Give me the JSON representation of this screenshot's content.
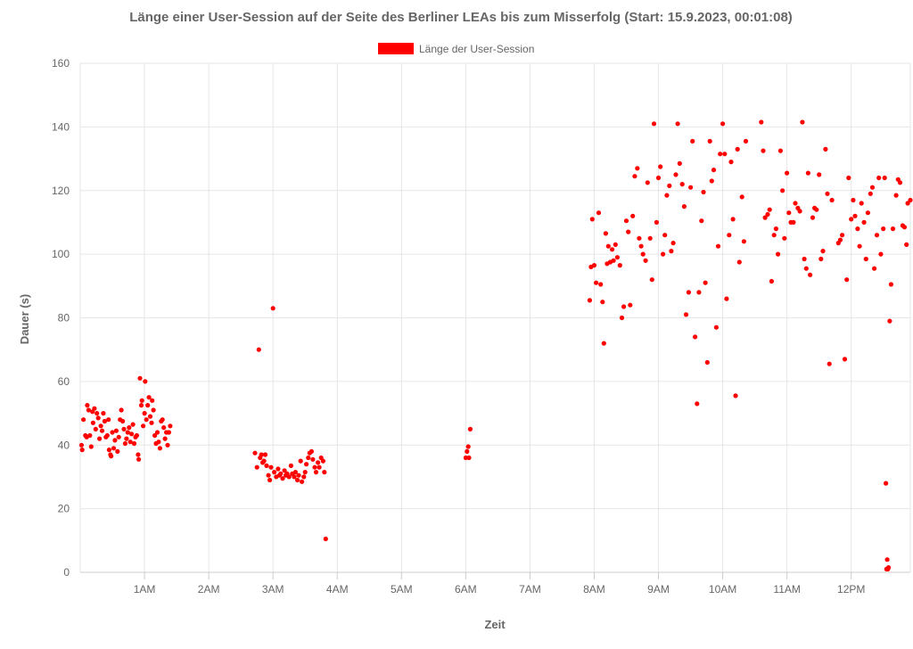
{
  "chart_data": {
    "type": "scatter",
    "title": "Länge einer User-Session auf der Seite des Berliner LEAs bis zum Misserfolg (Start: 15.9.2023, 00:01:08)",
    "xlabel": "Zeit",
    "ylabel": "Dauer (s)",
    "xlim": [
      0,
      12.92
    ],
    "ylim": [
      0,
      160
    ],
    "x_unit": "hours after midnight (15.9.2023)",
    "yticks": [
      0,
      20,
      40,
      60,
      80,
      100,
      120,
      140,
      160
    ],
    "xticks": [
      {
        "value": 1,
        "label": "1AM"
      },
      {
        "value": 2,
        "label": "2AM"
      },
      {
        "value": 3,
        "label": "3AM"
      },
      {
        "value": 4,
        "label": "4AM"
      },
      {
        "value": 5,
        "label": "5AM"
      },
      {
        "value": 6,
        "label": "6AM"
      },
      {
        "value": 7,
        "label": "7AM"
      },
      {
        "value": 8,
        "label": "8AM"
      },
      {
        "value": 9,
        "label": "9AM"
      },
      {
        "value": 10,
        "label": "10AM"
      },
      {
        "value": 11,
        "label": "11AM"
      },
      {
        "value": 12,
        "label": "12PM"
      }
    ],
    "grid": true,
    "legend_position": "top",
    "series": [
      {
        "name": "Länge der User-Session",
        "color": "#ff0000",
        "points": [
          [
            0.02,
            40
          ],
          [
            0.03,
            38.5
          ],
          [
            0.05,
            48
          ],
          [
            0.08,
            43
          ],
          [
            0.1,
            42.5
          ],
          [
            0.11,
            52.5
          ],
          [
            0.13,
            51
          ],
          [
            0.15,
            43
          ],
          [
            0.17,
            39.5
          ],
          [
            0.19,
            50.5
          ],
          [
            0.2,
            47
          ],
          [
            0.22,
            51.5
          ],
          [
            0.24,
            45
          ],
          [
            0.26,
            50
          ],
          [
            0.28,
            48.5
          ],
          [
            0.3,
            42
          ],
          [
            0.32,
            46
          ],
          [
            0.34,
            44.5
          ],
          [
            0.36,
            50
          ],
          [
            0.38,
            47.5
          ],
          [
            0.4,
            42.5
          ],
          [
            0.42,
            43
          ],
          [
            0.44,
            48
          ],
          [
            0.45,
            38.5
          ],
          [
            0.47,
            37
          ],
          [
            0.48,
            36.5
          ],
          [
            0.5,
            44
          ],
          [
            0.52,
            39
          ],
          [
            0.54,
            41.5
          ],
          [
            0.56,
            44.5
          ],
          [
            0.58,
            38
          ],
          [
            0.6,
            42.5
          ],
          [
            0.62,
            48
          ],
          [
            0.64,
            51
          ],
          [
            0.66,
            47.5
          ],
          [
            0.68,
            45
          ],
          [
            0.7,
            40.5
          ],
          [
            0.72,
            42
          ],
          [
            0.74,
            44
          ],
          [
            0.76,
            45.5
          ],
          [
            0.78,
            41
          ],
          [
            0.8,
            43.5
          ],
          [
            0.82,
            46.5
          ],
          [
            0.84,
            40.5
          ],
          [
            0.86,
            42.5
          ],
          [
            0.88,
            43
          ],
          [
            0.9,
            37
          ],
          [
            0.91,
            35.5
          ],
          [
            0.93,
            61
          ],
          [
            0.95,
            52.5
          ],
          [
            0.96,
            54
          ],
          [
            0.98,
            46
          ],
          [
            1.0,
            50
          ],
          [
            1.01,
            60
          ],
          [
            1.03,
            48
          ],
          [
            1.05,
            52.5
          ],
          [
            1.07,
            55
          ],
          [
            1.09,
            49
          ],
          [
            1.11,
            47
          ],
          [
            1.12,
            54
          ],
          [
            1.14,
            51
          ],
          [
            1.16,
            43
          ],
          [
            1.18,
            40.5
          ],
          [
            1.2,
            44
          ],
          [
            1.22,
            41
          ],
          [
            1.24,
            39
          ],
          [
            1.26,
            47.5
          ],
          [
            1.28,
            48
          ],
          [
            1.3,
            45.5
          ],
          [
            1.32,
            42
          ],
          [
            1.34,
            44
          ],
          [
            1.36,
            40
          ],
          [
            1.38,
            44
          ],
          [
            1.4,
            46
          ],
          [
            2.72,
            37.5
          ],
          [
            2.75,
            33
          ],
          [
            2.78,
            70
          ],
          [
            2.8,
            36
          ],
          [
            2.82,
            37
          ],
          [
            2.84,
            34.5
          ],
          [
            2.86,
            35
          ],
          [
            2.88,
            37
          ],
          [
            2.9,
            33.5
          ],
          [
            2.93,
            30.5
          ],
          [
            2.95,
            29
          ],
          [
            2.97,
            33
          ],
          [
            3.0,
            83
          ],
          [
            3.02,
            31.5
          ],
          [
            3.05,
            30
          ],
          [
            3.08,
            32.5
          ],
          [
            3.1,
            30.5
          ],
          [
            3.12,
            31
          ],
          [
            3.15,
            29.5
          ],
          [
            3.18,
            32
          ],
          [
            3.2,
            30.5
          ],
          [
            3.22,
            31
          ],
          [
            3.25,
            30
          ],
          [
            3.28,
            33.5
          ],
          [
            3.3,
            31
          ],
          [
            3.33,
            30
          ],
          [
            3.35,
            31.5
          ],
          [
            3.38,
            29
          ],
          [
            3.4,
            30.5
          ],
          [
            3.43,
            35
          ],
          [
            3.45,
            28.5
          ],
          [
            3.48,
            30
          ],
          [
            3.5,
            31.5
          ],
          [
            3.52,
            34
          ],
          [
            3.55,
            36
          ],
          [
            3.57,
            37.5
          ],
          [
            3.6,
            38
          ],
          [
            3.62,
            35.5
          ],
          [
            3.65,
            33
          ],
          [
            3.67,
            31.5
          ],
          [
            3.7,
            34.5
          ],
          [
            3.72,
            33
          ],
          [
            3.75,
            36
          ],
          [
            3.78,
            35
          ],
          [
            3.8,
            31.5
          ],
          [
            3.82,
            10.5
          ],
          [
            6.0,
            36
          ],
          [
            6.02,
            38
          ],
          [
            6.04,
            39.5
          ],
          [
            6.05,
            36
          ],
          [
            6.07,
            45
          ],
          [
            7.93,
            85.5
          ],
          [
            7.95,
            96
          ],
          [
            7.97,
            111
          ],
          [
            8.0,
            96.5
          ],
          [
            8.03,
            91
          ],
          [
            8.07,
            113
          ],
          [
            8.1,
            90.5
          ],
          [
            8.13,
            85
          ],
          [
            8.15,
            72
          ],
          [
            8.18,
            106.5
          ],
          [
            8.2,
            97
          ],
          [
            8.22,
            102.5
          ],
          [
            8.25,
            97.5
          ],
          [
            8.28,
            101.5
          ],
          [
            8.3,
            98
          ],
          [
            8.33,
            103
          ],
          [
            8.36,
            99
          ],
          [
            8.4,
            96.5
          ],
          [
            8.43,
            80
          ],
          [
            8.46,
            83.5
          ],
          [
            8.5,
            110.5
          ],
          [
            8.53,
            107
          ],
          [
            8.56,
            84
          ],
          [
            8.6,
            112
          ],
          [
            8.63,
            124.5
          ],
          [
            8.67,
            127
          ],
          [
            8.7,
            105
          ],
          [
            8.73,
            102.5
          ],
          [
            8.76,
            100
          ],
          [
            8.8,
            98
          ],
          [
            8.83,
            122.5
          ],
          [
            8.87,
            105
          ],
          [
            8.9,
            92
          ],
          [
            8.93,
            141
          ],
          [
            8.97,
            110
          ],
          [
            9.0,
            124
          ],
          [
            9.03,
            127.5
          ],
          [
            9.07,
            100
          ],
          [
            9.1,
            106
          ],
          [
            9.13,
            118.5
          ],
          [
            9.17,
            121.5
          ],
          [
            9.2,
            101
          ],
          [
            9.23,
            103.5
          ],
          [
            9.27,
            125
          ],
          [
            9.3,
            141
          ],
          [
            9.33,
            128.5
          ],
          [
            9.37,
            122
          ],
          [
            9.4,
            115
          ],
          [
            9.43,
            81
          ],
          [
            9.47,
            88
          ],
          [
            9.5,
            121
          ],
          [
            9.53,
            135.5
          ],
          [
            9.57,
            74
          ],
          [
            9.6,
            53
          ],
          [
            9.63,
            88
          ],
          [
            9.67,
            110.5
          ],
          [
            9.7,
            119.5
          ],
          [
            9.73,
            91
          ],
          [
            9.76,
            66
          ],
          [
            9.8,
            135.5
          ],
          [
            9.83,
            123
          ],
          [
            9.86,
            126.5
          ],
          [
            9.9,
            77
          ],
          [
            9.93,
            102.5
          ],
          [
            9.96,
            131.5
          ],
          [
            10.0,
            141
          ],
          [
            10.03,
            131.5
          ],
          [
            10.06,
            86
          ],
          [
            10.1,
            106
          ],
          [
            10.13,
            129
          ],
          [
            10.16,
            111
          ],
          [
            10.2,
            55.5
          ],
          [
            10.23,
            133
          ],
          [
            10.26,
            97.5
          ],
          [
            10.3,
            118
          ],
          [
            10.33,
            104
          ],
          [
            10.36,
            135.5
          ],
          [
            10.6,
            141.5
          ],
          [
            10.63,
            132.5
          ],
          [
            10.66,
            111.5
          ],
          [
            10.7,
            112.5
          ],
          [
            10.73,
            114
          ],
          [
            10.76,
            91.5
          ],
          [
            10.8,
            106
          ],
          [
            10.83,
            108
          ],
          [
            10.86,
            100
          ],
          [
            10.9,
            132.5
          ],
          [
            10.93,
            120
          ],
          [
            10.96,
            105
          ],
          [
            11.0,
            125.5
          ],
          [
            11.03,
            113
          ],
          [
            11.06,
            110
          ],
          [
            11.1,
            110
          ],
          [
            11.13,
            116
          ],
          [
            11.17,
            114.5
          ],
          [
            11.2,
            113.5
          ],
          [
            11.24,
            141.5
          ],
          [
            11.27,
            98.5
          ],
          [
            11.3,
            95.5
          ],
          [
            11.33,
            125.5
          ],
          [
            11.36,
            93.5
          ],
          [
            11.4,
            111.5
          ],
          [
            11.43,
            114.5
          ],
          [
            11.46,
            114
          ],
          [
            11.5,
            125
          ],
          [
            11.53,
            98.5
          ],
          [
            11.56,
            101
          ],
          [
            11.6,
            133
          ],
          [
            11.63,
            119
          ],
          [
            11.66,
            65.5
          ],
          [
            11.7,
            117
          ],
          [
            11.8,
            103.5
          ],
          [
            11.83,
            104.5
          ],
          [
            11.86,
            106
          ],
          [
            11.9,
            67
          ],
          [
            11.93,
            92
          ],
          [
            11.96,
            124
          ],
          [
            12.0,
            111
          ],
          [
            12.03,
            117
          ],
          [
            12.06,
            112
          ],
          [
            12.1,
            108
          ],
          [
            12.13,
            102.5
          ],
          [
            12.16,
            116
          ],
          [
            12.2,
            110
          ],
          [
            12.23,
            98.5
          ],
          [
            12.26,
            113
          ],
          [
            12.3,
            119
          ],
          [
            12.33,
            121
          ],
          [
            12.36,
            95.5
          ],
          [
            12.4,
            106
          ],
          [
            12.43,
            124
          ],
          [
            12.46,
            100
          ],
          [
            12.5,
            108
          ],
          [
            12.52,
            124
          ],
          [
            12.54,
            28
          ],
          [
            12.55,
            1
          ],
          [
            12.56,
            4
          ],
          [
            12.57,
            1
          ],
          [
            12.58,
            1.5
          ],
          [
            12.6,
            79
          ],
          [
            12.62,
            90.5
          ],
          [
            12.65,
            108
          ],
          [
            12.7,
            118.5
          ],
          [
            12.73,
            123.5
          ],
          [
            12.76,
            122.5
          ],
          [
            12.8,
            109
          ],
          [
            12.83,
            108.5
          ],
          [
            12.86,
            103
          ],
          [
            12.88,
            116
          ],
          [
            12.92,
            117
          ]
        ]
      }
    ]
  }
}
